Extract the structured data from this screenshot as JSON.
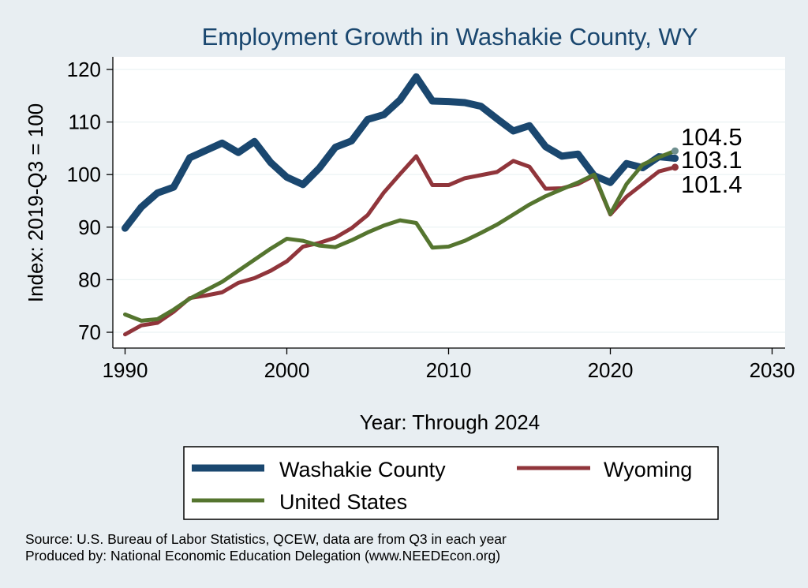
{
  "chart_data": {
    "type": "line",
    "title": "Employment Growth in Washakie County, WY",
    "xlabel": "Year: Through 2024",
    "ylabel": "Index: 2019-Q3 = 100",
    "xlim": [
      1990,
      2030
    ],
    "ylim": [
      70,
      120
    ],
    "x_ticks": [
      1990,
      2000,
      2010,
      2020,
      2030
    ],
    "y_ticks": [
      70,
      80,
      90,
      100,
      110,
      120
    ],
    "grid": true,
    "legend_position": "bottom",
    "x": [
      1990,
      1991,
      1992,
      1993,
      1994,
      1995,
      1996,
      1997,
      1998,
      1999,
      2000,
      2001,
      2002,
      2003,
      2004,
      2005,
      2006,
      2007,
      2008,
      2009,
      2010,
      2011,
      2012,
      2013,
      2014,
      2015,
      2016,
      2017,
      2018,
      2019,
      2020,
      2021,
      2022,
      2023,
      2024
    ],
    "series": [
      {
        "name": "Washakie  County",
        "color": "#1a476f",
        "end_label": "103.1",
        "values": [
          89.8,
          93.8,
          96.5,
          97.6,
          103.2,
          104.6,
          106.0,
          104.2,
          106.3,
          102.3,
          99.5,
          98.1,
          101.2,
          105.2,
          106.4,
          110.5,
          111.4,
          114.2,
          118.6,
          114.0,
          113.9,
          113.7,
          113.0,
          110.6,
          108.3,
          109.3,
          105.3,
          103.5,
          103.9,
          99.8,
          98.5,
          102.1,
          101.3,
          103.4,
          103.1
        ]
      },
      {
        "name": "Wyoming",
        "color": "#90353b",
        "end_label": "101.4",
        "values": [
          69.6,
          71.3,
          71.8,
          73.9,
          76.5,
          77.0,
          77.6,
          79.4,
          80.3,
          81.7,
          83.5,
          86.3,
          87.0,
          88.0,
          89.8,
          92.3,
          96.6,
          100.1,
          103.5,
          98.0,
          98.0,
          99.3,
          99.9,
          100.5,
          102.6,
          101.5,
          97.3,
          97.4,
          98.2,
          99.8,
          92.4,
          95.8,
          98.2,
          100.6,
          101.4
        ]
      },
      {
        "name": "United States",
        "color": "#55752f",
        "end_label": "104.5",
        "values": [
          73.4,
          72.2,
          72.5,
          74.3,
          76.4,
          78.0,
          79.6,
          81.7,
          83.8,
          85.9,
          87.8,
          87.4,
          86.5,
          86.2,
          87.5,
          89.0,
          90.3,
          91.3,
          90.8,
          86.1,
          86.3,
          87.4,
          88.9,
          90.5,
          92.4,
          94.3,
          95.9,
          97.2,
          98.5,
          100.0,
          92.5,
          98.2,
          101.9,
          103.3,
          104.5
        ]
      }
    ],
    "legend_entries": [
      "Washakie  County",
      "Wyoming",
      "United States"
    ],
    "notes": [
      "Source: U.S. Bureau of Labor Statistics, QCEW, data are from Q3 in each year",
      "Produced by: National Economic Education Delegation (www.NEEDEcon.org)"
    ],
    "colors": {
      "background": "#e8eef2",
      "plot_background": "#ffffff",
      "title": "#1a476f",
      "grid": "#eaf2f3",
      "us_endpoint_marker": "#6f8f8f"
    }
  }
}
